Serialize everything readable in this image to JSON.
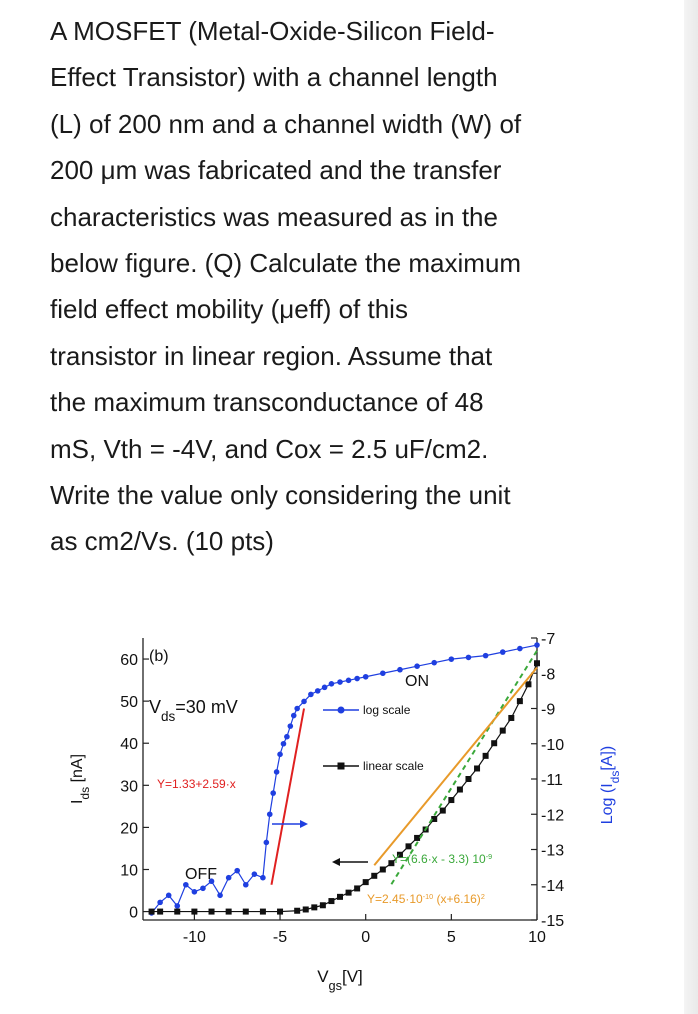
{
  "question": {
    "lines": [
      "A MOSFET (Metal-Oxide-Silicon Field-",
      "Effect Transistor) with a channel length",
      "(L) of 200 nm and a channel width (W) of",
      "200 μm was fabricated and the transfer",
      "characteristics was measured as in the",
      "below figure. (Q) Calculate the maximum",
      "field effect mobility (μeff) of this",
      "transistor in linear region. Assume that",
      "the maximum transconductance of 48",
      "mS, Vth = -4V, and Cox = 2.5 uF/cm2.",
      "Write the value only considering the unit",
      "as cm2/Vs. (10 pts)"
    ]
  },
  "colors": {
    "log_series": "#1f3fe0",
    "linear_series": "#111111",
    "steep_fit": "#e02020",
    "quad_fit": "#e89a2a",
    "lin_fit": "#3aa83a",
    "arrow_blue": "#1f3fe0"
  },
  "chart_data": {
    "type": "scatter",
    "panel_label": "(b)",
    "xlabel": "V",
    "xlabel_sub": "gs",
    "xlabel_unit": "[V]",
    "ylabel_left": "I",
    "ylabel_left_sub": "ds",
    "ylabel_left_unit": " [nA]",
    "ylabel_right": "Log (I",
    "ylabel_right_sub": "ds",
    "ylabel_right_unit": "[A])",
    "vds_label": "V",
    "vds_sub": "ds",
    "vds_value": "=30 mV",
    "xlim": [
      -13,
      10
    ],
    "ylim_left": [
      -2,
      65
    ],
    "ylim_right": [
      -15,
      -7
    ],
    "x_ticks": [
      -10,
      -5,
      0,
      5,
      10
    ],
    "x_tick_labels": [
      "-10",
      "-5",
      "0",
      "5",
      "10"
    ],
    "y_left_ticks": [
      0,
      10,
      20,
      30,
      40,
      50,
      60
    ],
    "y_left_tick_labels": [
      "0",
      "10",
      "20",
      "30",
      "40",
      "50",
      "60"
    ],
    "y_right_ticks": [
      -7,
      -8,
      -9,
      -10,
      -11,
      -12,
      -13,
      -14,
      -15
    ],
    "y_right_tick_labels": [
      "-7",
      "-8",
      "-9",
      "-10",
      "-11",
      "-12",
      "-13",
      "-14",
      "-15"
    ],
    "annotations": {
      "on": "ON",
      "off": "OFF",
      "steep_fit": "Y=1.33+2.59·x",
      "lin_fit_a": "Y=(6.6·x - 3.3) 10",
      "lin_fit_a_exp": "-9",
      "quad_fit_a": "Y=2.45·10",
      "quad_fit_a_exp": "-10",
      "quad_fit_b": " (x+6.16)",
      "quad_fit_b_exp": "2"
    },
    "legend": [
      {
        "name": "log scale",
        "marker": "circle"
      },
      {
        "name": "linear scale",
        "marker": "square"
      }
    ],
    "series": [
      {
        "name": "log scale",
        "axis": "right",
        "x": [
          -12.5,
          -12,
          -11.5,
          -11,
          -10.5,
          -10,
          -9.5,
          -9,
          -8.5,
          -8,
          -7.5,
          -7,
          -6.5,
          -6,
          -5.8,
          -5.6,
          -5.4,
          -5.2,
          -5,
          -4.8,
          -4.6,
          -4.4,
          -4.2,
          -4,
          -3.6,
          -3.2,
          -2.8,
          -2.4,
          -2,
          -1.5,
          -1,
          -0.5,
          0,
          1,
          2,
          3,
          4,
          5,
          6,
          7,
          8,
          9,
          10
        ],
        "y": [
          -14.8,
          -14.5,
          -14.3,
          -14.6,
          -14.0,
          -14.2,
          -14.1,
          -13.9,
          -14.3,
          -13.8,
          -13.6,
          -14.0,
          -13.7,
          -13.8,
          -12.8,
          -12.0,
          -11.4,
          -10.8,
          -10.3,
          -10.0,
          -9.8,
          -9.5,
          -9.2,
          -9.0,
          -8.8,
          -8.6,
          -8.5,
          -8.4,
          -8.3,
          -8.25,
          -8.2,
          -8.15,
          -8.1,
          -8.0,
          -7.9,
          -7.8,
          -7.7,
          -7.6,
          -7.55,
          -7.5,
          -7.4,
          -7.3,
          -7.2
        ]
      },
      {
        "name": "linear scale",
        "axis": "left",
        "x": [
          -12.5,
          -12,
          -11,
          -10,
          -9,
          -8,
          -7,
          -6,
          -5,
          -4,
          -3.5,
          -3,
          -2.5,
          -2,
          -1.5,
          -1,
          -0.5,
          0,
          0.5,
          1,
          1.5,
          2,
          2.5,
          3,
          3.5,
          4,
          4.5,
          5,
          5.5,
          6,
          6.5,
          7,
          7.5,
          8,
          8.5,
          9,
          9.5,
          10
        ],
        "y": [
          0,
          0,
          0,
          0,
          0,
          0,
          0,
          0,
          0,
          0.2,
          0.5,
          1,
          1.5,
          2.5,
          3.5,
          4.5,
          5.5,
          7,
          8.5,
          10,
          11.5,
          13.5,
          15.5,
          17.5,
          19.5,
          22,
          24,
          26.5,
          29,
          31.5,
          34,
          37,
          40,
          43,
          46,
          50,
          54,
          59
        ]
      }
    ],
    "fits": [
      {
        "name": "Y=1.33+2.59·x",
        "axis": "right",
        "x": [
          -5.5,
          -3.6
        ],
        "y": [
          -14.0,
          -9.0
        ]
      },
      {
        "name": "Y=(6.6·x - 3.3) 10",
        "axis": "left",
        "x": [
          1.5,
          10
        ],
        "y": [
          6.5,
          62
        ]
      },
      {
        "name": "Y=2.45·10 (x+6.16)",
        "axis": "left",
        "x": [
          0.5,
          10
        ],
        "y": [
          11,
          58
        ]
      }
    ]
  }
}
